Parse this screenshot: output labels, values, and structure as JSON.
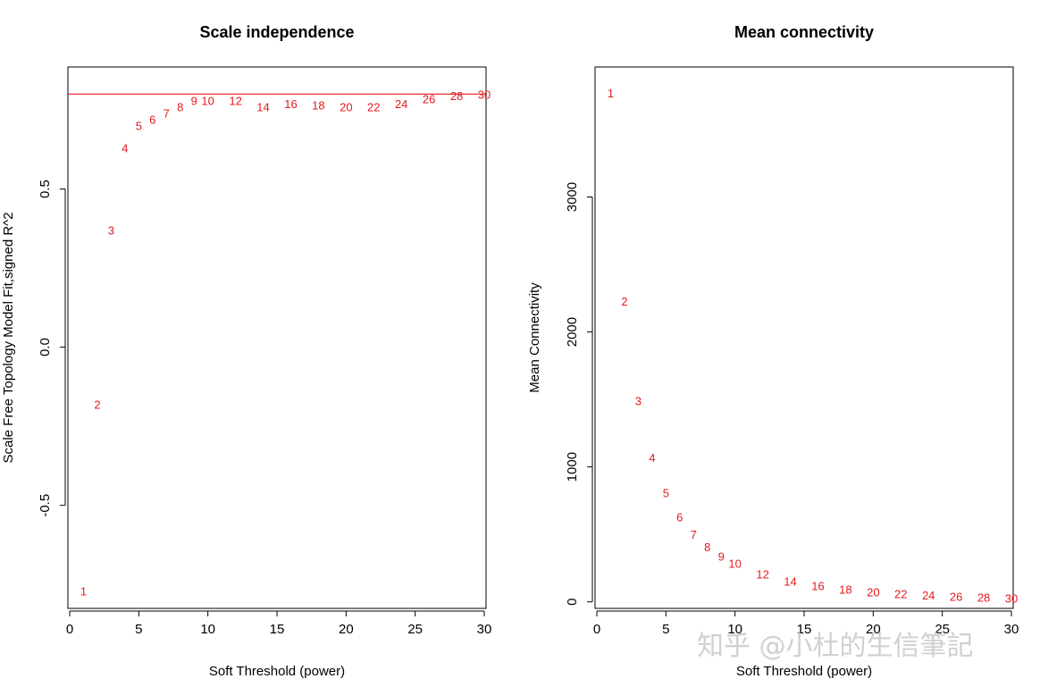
{
  "point_color": "#e41a1c",
  "watermark": "知乎 @小杜的生信筆記",
  "chart_data": [
    {
      "type": "scatter",
      "title": "Scale independence",
      "xlabel": "Soft Threshold (power)",
      "ylabel": "Scale Free Topology Model Fit,signed R^2",
      "xlim": [
        0,
        30
      ],
      "ylim": [
        -0.82,
        0.88
      ],
      "xticks": [
        0,
        5,
        10,
        15,
        20,
        25,
        30
      ],
      "yticks": [
        -0.5,
        0.0,
        0.5
      ],
      "ytick_labels": [
        "-0.5",
        "0.0",
        "0.5"
      ],
      "hline": 0.8,
      "grid": false,
      "points": [
        {
          "x": 1,
          "y": -0.77,
          "label": "1"
        },
        {
          "x": 2,
          "y": -0.18,
          "label": "2"
        },
        {
          "x": 3,
          "y": 0.37,
          "label": "3"
        },
        {
          "x": 4,
          "y": 0.63,
          "label": "4"
        },
        {
          "x": 5,
          "y": 0.7,
          "label": "5"
        },
        {
          "x": 6,
          "y": 0.72,
          "label": "6"
        },
        {
          "x": 7,
          "y": 0.74,
          "label": "7"
        },
        {
          "x": 8,
          "y": 0.76,
          "label": "8"
        },
        {
          "x": 9,
          "y": 0.78,
          "label": "9"
        },
        {
          "x": 10,
          "y": 0.78,
          "label": "10"
        },
        {
          "x": 12,
          "y": 0.78,
          "label": "12"
        },
        {
          "x": 14,
          "y": 0.76,
          "label": "14"
        },
        {
          "x": 16,
          "y": 0.77,
          "label": "16"
        },
        {
          "x": 18,
          "y": 0.765,
          "label": "18"
        },
        {
          "x": 20,
          "y": 0.76,
          "label": "20"
        },
        {
          "x": 22,
          "y": 0.76,
          "label": "22"
        },
        {
          "x": 24,
          "y": 0.77,
          "label": "24"
        },
        {
          "x": 26,
          "y": 0.785,
          "label": "26"
        },
        {
          "x": 28,
          "y": 0.795,
          "label": "28"
        },
        {
          "x": 30,
          "y": 0.8,
          "label": "30"
        }
      ]
    },
    {
      "type": "scatter",
      "title": "Mean connectivity",
      "xlabel": "Soft Threshold (power)",
      "ylabel": "Mean Connectivity",
      "xlim": [
        0,
        30
      ],
      "ylim": [
        -35,
        3950
      ],
      "xticks": [
        0,
        5,
        10,
        15,
        20,
        25,
        30
      ],
      "yticks": [
        0,
        1000,
        2000,
        3000
      ],
      "ytick_labels": [
        "0",
        "1000",
        "2000",
        "3000"
      ],
      "grid": false,
      "points": [
        {
          "x": 1,
          "y": 3770,
          "label": "1"
        },
        {
          "x": 2,
          "y": 2230,
          "label": "2"
        },
        {
          "x": 3,
          "y": 1490,
          "label": "3"
        },
        {
          "x": 4,
          "y": 1070,
          "label": "4"
        },
        {
          "x": 5,
          "y": 810,
          "label": "5"
        },
        {
          "x": 6,
          "y": 630,
          "label": "6"
        },
        {
          "x": 7,
          "y": 500,
          "label": "7"
        },
        {
          "x": 8,
          "y": 410,
          "label": "8"
        },
        {
          "x": 9,
          "y": 340,
          "label": "9"
        },
        {
          "x": 10,
          "y": 285,
          "label": "10"
        },
        {
          "x": 12,
          "y": 205,
          "label": "12"
        },
        {
          "x": 14,
          "y": 155,
          "label": "14"
        },
        {
          "x": 16,
          "y": 120,
          "label": "16"
        },
        {
          "x": 18,
          "y": 95,
          "label": "18"
        },
        {
          "x": 20,
          "y": 75,
          "label": "20"
        },
        {
          "x": 22,
          "y": 60,
          "label": "22"
        },
        {
          "x": 24,
          "y": 50,
          "label": "24"
        },
        {
          "x": 26,
          "y": 40,
          "label": "26"
        },
        {
          "x": 28,
          "y": 33,
          "label": "28"
        },
        {
          "x": 30,
          "y": 28,
          "label": "30"
        }
      ]
    }
  ]
}
